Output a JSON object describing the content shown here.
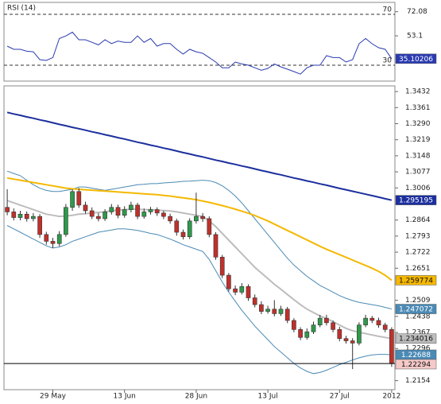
{
  "chart_data": [
    {
      "type": "line",
      "title": "RSI (14)",
      "ylim": [
        17.5,
        79.4
      ],
      "yticks": [
        72.08,
        53.1
      ],
      "levels": [
        70,
        30
      ],
      "series": [
        {
          "color": "#2a3bb0",
          "values": [
            45,
            42.5,
            42.5,
            41,
            40.6,
            34.4,
            33.75,
            36,
            51,
            53,
            56,
            50,
            50,
            48,
            46,
            50,
            47,
            49,
            48,
            48,
            53,
            48,
            51,
            45,
            47,
            47,
            42.5,
            38.75,
            42.5,
            40.6,
            39.4,
            36,
            32.5,
            28,
            28,
            32.5,
            31,
            30,
            28,
            26,
            27.5,
            31,
            28.7,
            26.9,
            25,
            23,
            28,
            30,
            30,
            37.5,
            36,
            36,
            32.5,
            34.4,
            46.9,
            51,
            46.9,
            43.75,
            42.5,
            35.10206
          ]
        }
      ]
    },
    {
      "type": "candlestick",
      "categories": [
        null,
        null,
        null,
        null,
        null,
        null,
        null,
        "29 May",
        null,
        null,
        null,
        null,
        null,
        null,
        null,
        null,
        null,
        null,
        "13 Jun",
        null,
        null,
        null,
        null,
        null,
        null,
        null,
        null,
        null,
        null,
        "28 Jun",
        null,
        null,
        null,
        null,
        null,
        null,
        null,
        null,
        null,
        null,
        "13 Jul",
        null,
        null,
        null,
        null,
        null,
        null,
        null,
        null,
        null,
        null,
        "27 Jul",
        null,
        null,
        null,
        null,
        null,
        null,
        null,
        "2012"
      ],
      "open": [
        1.292,
        1.29,
        1.2875,
        1.289,
        1.287,
        1.288,
        1.28,
        1.277,
        1.276,
        1.28,
        1.292,
        1.299,
        1.293,
        1.2905,
        1.288,
        1.287,
        1.29,
        1.292,
        1.2885,
        1.291,
        1.293,
        1.288,
        1.29,
        1.291,
        1.2895,
        1.288,
        1.286,
        1.281,
        1.279,
        1.286,
        1.288,
        1.287,
        1.28,
        1.27,
        1.262,
        1.256,
        1.2545,
        1.257,
        1.252,
        1.249,
        1.246,
        1.247,
        1.245,
        1.247,
        1.242,
        1.238,
        1.2345,
        1.237,
        1.24,
        1.243,
        1.241,
        1.238,
        1.234,
        1.233,
        1.232,
        1.24,
        1.243,
        1.242,
        1.24,
        1.238
      ],
      "high": [
        1.3,
        1.2915,
        1.2905,
        1.2902,
        1.2895,
        1.289,
        1.2812,
        1.2785,
        1.2815,
        1.2935,
        1.3,
        1.3005,
        1.2945,
        1.292,
        1.2895,
        1.2912,
        1.2935,
        1.2932,
        1.2925,
        1.2945,
        1.294,
        1.2915,
        1.2922,
        1.292,
        1.2905,
        1.2892,
        1.287,
        1.2822,
        1.2872,
        1.2985,
        1.2895,
        1.288,
        1.281,
        1.271,
        1.263,
        1.2575,
        1.2585,
        1.258,
        1.2535,
        1.2505,
        1.2485,
        1.251,
        1.2485,
        1.248,
        1.243,
        1.239,
        1.2385,
        1.2415,
        1.2445,
        1.2445,
        1.242,
        1.2392,
        1.2352,
        1.2342,
        1.2412,
        1.2445,
        1.244,
        1.2432,
        1.241,
        1.239
      ],
      "low": [
        1.2885,
        1.2862,
        1.2863,
        1.2857,
        1.2858,
        1.2785,
        1.2755,
        1.274,
        1.2748,
        1.279,
        1.2905,
        1.2918,
        1.2892,
        1.2868,
        1.2858,
        1.286,
        1.2888,
        1.2872,
        1.2874,
        1.2898,
        1.2868,
        1.287,
        1.2888,
        1.2882,
        1.2868,
        1.2848,
        1.2795,
        1.2778,
        1.278,
        1.2848,
        1.2856,
        1.2788,
        1.2688,
        1.2607,
        1.2548,
        1.2532,
        1.2535,
        1.2507,
        1.2478,
        1.2448,
        1.245,
        1.2438,
        1.244,
        1.2408,
        1.2368,
        1.2333,
        1.2335,
        1.236,
        1.239,
        1.2398,
        1.2368,
        1.2328,
        1.2318,
        1.2205,
        1.231,
        1.239,
        1.2408,
        1.2388,
        1.2368,
        1.2215
      ],
      "close": [
        1.29,
        1.2875,
        1.289,
        1.287,
        1.288,
        1.28,
        1.277,
        1.276,
        1.28,
        1.292,
        1.299,
        1.293,
        1.2905,
        1.288,
        1.287,
        1.29,
        1.292,
        1.2885,
        1.291,
        1.293,
        1.288,
        1.29,
        1.291,
        1.2895,
        1.288,
        1.286,
        1.281,
        1.279,
        1.286,
        1.288,
        1.287,
        1.28,
        1.27,
        1.262,
        1.256,
        1.2545,
        1.257,
        1.252,
        1.249,
        1.246,
        1.247,
        1.245,
        1.247,
        1.242,
        1.238,
        1.2345,
        1.237,
        1.24,
        1.243,
        1.241,
        1.238,
        1.234,
        1.233,
        1.232,
        1.24,
        1.243,
        1.242,
        1.24,
        1.238,
        1.22294
      ],
      "up_color": "#2e9a4a",
      "down_color": "#c0302b",
      "ylim": [
        1.2114,
        1.3457
      ],
      "yticks": [
        1.3432,
        1.3361,
        {
          "value": 1.329,
          "label": "1.3290"
        },
        1.3219,
        1.3148,
        1.3077,
        1.3006,
        1.2864,
        1.2793,
        1.2722,
        1.2651,
        1.2509,
        1.2438,
        1.2367,
        1.2296,
        1.2154
      ],
      "series": [
        {
          "color": "#4b8ab5",
          "values": [
            1.308,
            1.307,
            1.306,
            1.304,
            1.302,
            1.3005,
            1.2995,
            1.299,
            1.299,
            1.2995,
            1.3,
            1.301,
            1.301,
            1.3005,
            1.3,
            1.2995,
            1.3,
            1.3005,
            1.301,
            1.3015,
            1.302,
            1.3022,
            1.3025,
            1.3025,
            1.3028,
            1.303,
            1.3032,
            1.3035,
            1.3036,
            1.3038,
            1.304,
            1.3038,
            1.303,
            1.3015,
            1.2995,
            1.297,
            1.294,
            1.2905,
            1.287,
            1.2835,
            1.28,
            1.2765,
            1.273,
            1.2695,
            1.2665,
            1.264,
            1.2615,
            1.2595,
            1.2575,
            1.256,
            1.2545,
            1.253,
            1.2518,
            1.2508,
            1.25,
            1.2495,
            1.249,
            1.2485,
            1.2478,
            1.247072
          ]
        },
        {
          "color": "#4b8ab5",
          "values": [
            1.284,
            1.2825,
            1.281,
            1.2795,
            1.278,
            1.2765,
            1.275,
            1.274,
            1.2745,
            1.2755,
            1.277,
            1.278,
            1.279,
            1.28,
            1.281,
            1.2815,
            1.282,
            1.2825,
            1.2825,
            1.2822,
            1.2818,
            1.2812,
            1.2805,
            1.28,
            1.279,
            1.278,
            1.2768,
            1.2755,
            1.2745,
            1.2735,
            1.2725,
            1.269,
            1.264,
            1.259,
            1.2545,
            1.2505,
            1.2465,
            1.243,
            1.2395,
            1.2365,
            1.2335,
            1.2305,
            1.228,
            1.2255,
            1.223,
            1.221,
            1.2195,
            1.2185,
            1.219,
            1.22,
            1.2212,
            1.2225,
            1.2235,
            1.2245,
            1.2255,
            1.2262,
            1.2268,
            1.227,
            1.227,
            1.22688
          ]
        },
        {
          "color": "#bdbdbd",
          "values": [
            1.295,
            1.294,
            1.293,
            1.292,
            1.291,
            1.29,
            1.289,
            1.2885,
            1.288,
            1.2882,
            1.2885,
            1.289,
            1.2892,
            1.2895,
            1.2898,
            1.29,
            1.2905,
            1.2908,
            1.291,
            1.2912,
            1.2912,
            1.291,
            1.291,
            1.2908,
            1.2906,
            1.2904,
            1.29,
            1.2895,
            1.289,
            1.2885,
            1.288,
            1.286,
            1.2835,
            1.2805,
            1.2775,
            1.2745,
            1.2715,
            1.2685,
            1.2655,
            1.263,
            1.2605,
            1.258,
            1.2558,
            1.2535,
            1.2512,
            1.249,
            1.247,
            1.2455,
            1.244,
            1.2428,
            1.2415,
            1.24,
            1.2385,
            1.2375,
            1.2368,
            1.2362,
            1.2356,
            1.235,
            1.2345,
            1.234016
          ]
        },
        {
          "color": "#f5b800",
          "values": [
            1.305,
            1.3045,
            1.304,
            1.3035,
            1.303,
            1.3025,
            1.302,
            1.3015,
            1.301,
            1.3005,
            1.3002,
            1.3,
            1.2998,
            1.2996,
            1.2994,
            1.2992,
            1.299,
            1.2988,
            1.2986,
            1.2984,
            1.2982,
            1.298,
            1.2978,
            1.2976,
            1.2973,
            1.297,
            1.2966,
            1.2962,
            1.2958,
            1.2954,
            1.2948,
            1.2942,
            1.2935,
            1.2928,
            1.292,
            1.2912,
            1.2903,
            1.2894,
            1.2884,
            1.2872,
            1.286,
            1.2846,
            1.2832,
            1.2818,
            1.2804,
            1.279,
            1.2776,
            1.2762,
            1.2748,
            1.2735,
            1.2723,
            1.2711,
            1.2699,
            1.2687,
            1.2675,
            1.2663,
            1.2651,
            1.2637,
            1.262,
            1.259774
          ]
        },
        {
          "color": "#1c2f9e",
          "values": [
            1.334,
            1.3333,
            1.3327,
            1.332,
            1.3314,
            1.3307,
            1.3301,
            1.3294,
            1.3287,
            1.3281,
            1.3274,
            1.3268,
            1.3261,
            1.3254,
            1.3248,
            1.3241,
            1.3235,
            1.3228,
            1.3222,
            1.3215,
            1.3208,
            1.3202,
            1.3195,
            1.3189,
            1.3182,
            1.3176,
            1.3169,
            1.3162,
            1.3156,
            1.3149,
            1.3143,
            1.3136,
            1.3129,
            1.3123,
            1.3116,
            1.311,
            1.3103,
            1.3097,
            1.309,
            1.3083,
            1.3077,
            1.307,
            1.3064,
            1.3057,
            1.305,
            1.3044,
            1.3037,
            1.3031,
            1.3024,
            1.3018,
            1.3011,
            1.3004,
            1.2998,
            1.2991,
            1.2985,
            1.2978,
            1.2972,
            1.2965,
            1.2958,
            1.295195
          ]
        }
      ]
    }
  ]
}
